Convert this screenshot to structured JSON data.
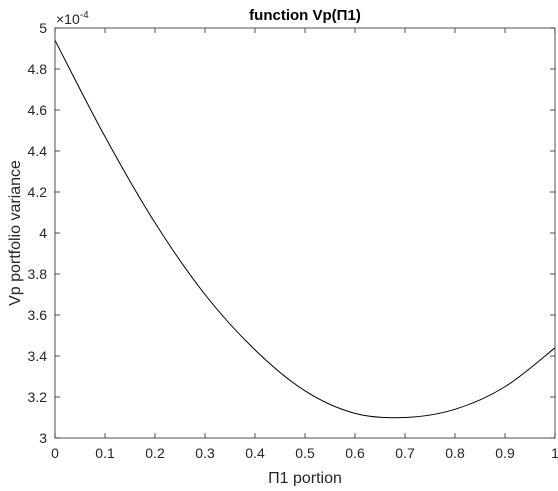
{
  "chart_data": {
    "type": "line",
    "title": "function Vp(Π1)",
    "xlabel": "Π1 portion",
    "ylabel": "Vp portfolio variance",
    "exponent_base": "×10",
    "exponent_power": "-4",
    "xlim": [
      0,
      1
    ],
    "ylim": [
      3,
      5
    ],
    "y_scale_factor": 0.0001,
    "xticks": [
      0,
      0.1,
      0.2,
      0.3,
      0.4,
      0.5,
      0.6,
      0.7,
      0.8,
      0.9,
      1
    ],
    "xtick_labels": [
      "0",
      "0.1",
      "0.2",
      "0.3",
      "0.4",
      "0.5",
      "0.6",
      "0.7",
      "0.8",
      "0.9",
      "1"
    ],
    "yticks": [
      3,
      3.2,
      3.4,
      3.6,
      3.8,
      4,
      4.2,
      4.4,
      4.6,
      4.8,
      5
    ],
    "ytick_labels": [
      "3",
      "3.2",
      "3.4",
      "3.6",
      "3.8",
      "4",
      "4.2",
      "4.4",
      "4.6",
      "4.8",
      "5"
    ],
    "grid": false,
    "box": true,
    "colors": {
      "line": "#000000",
      "axes": "#262626",
      "background": "#ffffff"
    },
    "series": [
      {
        "x": [
          0,
          0.1,
          0.2,
          0.3,
          0.4,
          0.5,
          0.6,
          0.7,
          0.8,
          0.9,
          1
        ],
        "values": [
          4.94,
          4.47,
          4.05,
          3.7,
          3.43,
          3.23,
          3.12,
          3.1,
          3.14,
          3.25,
          3.44
        ]
      }
    ]
  }
}
